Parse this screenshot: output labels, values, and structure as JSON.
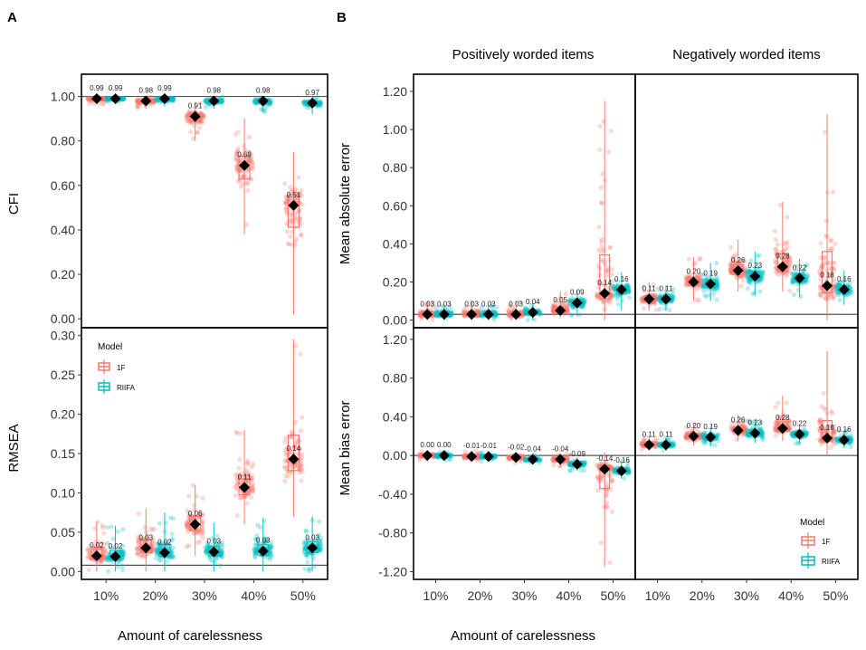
{
  "panel_labels": {
    "a": "A",
    "b": "B"
  },
  "axis_xlabel": "Amount of carelessness",
  "facet_positive": "Positively worded items",
  "facet_negative": "Negatively worded items",
  "legend": {
    "title": "Model",
    "items": [
      {
        "name": "1F",
        "color": "#F8766D"
      },
      {
        "name": "RIIFA",
        "color": "#00BFC4"
      }
    ]
  },
  "chart_data": [
    {
      "id": "A-CFI",
      "type": "scatter",
      "subtype": "jittered boxplot with mean markers",
      "ylabel": "CFI",
      "xlabel": "Amount of carelessness",
      "categories": [
        "10%",
        "20%",
        "30%",
        "40%",
        "50%"
      ],
      "ylim": [
        -0.04,
        1.1
      ],
      "yticks": [
        "0.00",
        "0.20",
        "0.40",
        "0.60",
        "0.80",
        "1.00"
      ],
      "hline": 1.0,
      "series": [
        {
          "name": "1F",
          "means": [
            0.99,
            0.98,
            0.91,
            0.69,
            0.51
          ],
          "labels": [
            "0.99",
            "0.98",
            "0.91",
            "0.69",
            "0.51"
          ],
          "min": [
            0.965,
            0.945,
            0.8,
            0.38,
            0.02
          ],
          "max": [
            1.0,
            1.0,
            0.975,
            0.9,
            0.75
          ]
        },
        {
          "name": "RIIFA",
          "means": [
            0.99,
            0.99,
            0.98,
            0.98,
            0.97
          ],
          "labels": [
            "0.99",
            "0.99",
            "0.98",
            "0.98",
            "0.97"
          ],
          "min": [
            0.975,
            0.955,
            0.945,
            0.93,
            0.92
          ],
          "max": [
            1.0,
            1.0,
            1.0,
            1.0,
            1.0
          ]
        }
      ]
    },
    {
      "id": "A-RMSEA",
      "type": "scatter",
      "subtype": "jittered boxplot with mean markers",
      "ylabel": "RMSEA",
      "xlabel": "Amount of carelessness",
      "categories": [
        "10%",
        "20%",
        "30%",
        "40%",
        "50%"
      ],
      "ylim": [
        -0.01,
        0.31
      ],
      "yticks": [
        "0.00",
        "0.05",
        "0.10",
        "0.15",
        "0.20",
        "0.25",
        "0.30"
      ],
      "hline": 0.008,
      "series": [
        {
          "name": "1F",
          "means": [
            0.02,
            0.03,
            0.06,
            0.107,
            0.143
          ],
          "labels": [
            "0.02",
            "0.03",
            "0.06",
            "0.11",
            "0.14"
          ],
          "min": [
            0.0,
            0.0,
            0.02,
            0.06,
            0.07
          ],
          "max": [
            0.063,
            0.08,
            0.11,
            0.18,
            0.295
          ]
        },
        {
          "name": "RIIFA",
          "means": [
            0.019,
            0.024,
            0.025,
            0.026,
            0.03
          ],
          "labels": [
            "0.02",
            "0.02",
            "0.03",
            "0.03",
            "0.03"
          ],
          "min": [
            0.0,
            0.0,
            0.0,
            0.0,
            0.0
          ],
          "max": [
            0.058,
            0.075,
            0.062,
            0.068,
            0.07
          ]
        }
      ]
    },
    {
      "id": "B-MAE-pos",
      "type": "scatter",
      "subtype": "jittered boxplot with mean markers",
      "ylabel": "Mean absolute error",
      "facet": "Positively worded items",
      "xlabel": "Amount of carelessness",
      "categories": [
        "10%",
        "20%",
        "30%",
        "40%",
        "50%"
      ],
      "ylim": [
        -0.04,
        1.29
      ],
      "yticks": [
        "0.00",
        "0.20",
        "0.40",
        "0.60",
        "0.80",
        "1.00",
        "1.20"
      ],
      "hline": 0.03,
      "series": [
        {
          "name": "1F",
          "means": [
            0.03,
            0.03,
            0.03,
            0.05,
            0.14
          ],
          "labels": [
            "0.03",
            "0.03",
            "0.03",
            "0.05",
            "0.14"
          ],
          "min": [
            0.0,
            0.0,
            0.0,
            0.01,
            0.0
          ],
          "max": [
            0.1,
            0.1,
            0.1,
            0.15,
            1.15
          ]
        },
        {
          "name": "RIIFA",
          "means": [
            0.03,
            0.03,
            0.04,
            0.09,
            0.16
          ],
          "labels": [
            "0.03",
            "0.03",
            "0.04",
            "0.09",
            "0.16"
          ],
          "min": [
            0.0,
            0.0,
            0.0,
            0.02,
            0.05
          ],
          "max": [
            0.08,
            0.08,
            0.09,
            0.16,
            0.25
          ]
        }
      ]
    },
    {
      "id": "B-MAE-neg",
      "type": "scatter",
      "subtype": "jittered boxplot with mean markers",
      "ylabel": "Mean absolute error",
      "facet": "Negatively worded items",
      "xlabel": "Amount of carelessness",
      "categories": [
        "10%",
        "20%",
        "30%",
        "40%",
        "50%"
      ],
      "ylim": [
        -0.04,
        1.29
      ],
      "hline": 0.03,
      "series": [
        {
          "name": "1F",
          "means": [
            0.11,
            0.2,
            0.26,
            0.28,
            0.18
          ],
          "labels": [
            "0.11",
            "0.20",
            "0.26",
            "0.28",
            "0.18"
          ],
          "min": [
            0.05,
            0.1,
            0.15,
            0.15,
            0.0
          ],
          "max": [
            0.2,
            0.33,
            0.42,
            0.62,
            1.08
          ]
        },
        {
          "name": "RIIFA",
          "means": [
            0.11,
            0.19,
            0.23,
            0.22,
            0.16
          ],
          "labels": [
            "0.11",
            "0.19",
            "0.23",
            "0.22",
            "0.16"
          ],
          "min": [
            0.05,
            0.1,
            0.13,
            0.12,
            0.08
          ],
          "max": [
            0.18,
            0.3,
            0.36,
            0.32,
            0.26
          ]
        }
      ]
    },
    {
      "id": "B-MBE-pos",
      "type": "scatter",
      "subtype": "jittered boxplot with mean markers",
      "ylabel": "Mean bias error",
      "facet": "Positively worded items",
      "xlabel": "Amount of carelessness",
      "categories": [
        "10%",
        "20%",
        "30%",
        "40%",
        "50%"
      ],
      "ylim": [
        -1.28,
        1.32
      ],
      "yticks": [
        "-1.20",
        "-0.80",
        "-0.40",
        "0.00",
        "0.40",
        "0.80",
        "1.20"
      ],
      "hline": 0.0,
      "series": [
        {
          "name": "1F",
          "means": [
            0.0,
            -0.01,
            -0.02,
            -0.04,
            -0.14
          ],
          "labels": [
            "0.00",
            "-0.01",
            "-0.02",
            "-0.04",
            "-0.14"
          ],
          "min": [
            -0.05,
            -0.06,
            -0.08,
            -0.12,
            -1.15
          ],
          "max": [
            0.05,
            0.05,
            0.03,
            0.02,
            0.03
          ]
        },
        {
          "name": "RIIFA",
          "means": [
            0.0,
            -0.01,
            -0.04,
            -0.09,
            -0.16
          ],
          "labels": [
            "0.00",
            "-0.01",
            "-0.04",
            "-0.09",
            "-0.16"
          ],
          "min": [
            -0.05,
            -0.06,
            -0.09,
            -0.16,
            -0.24
          ],
          "max": [
            0.04,
            0.04,
            0.02,
            -0.02,
            -0.06
          ]
        }
      ]
    },
    {
      "id": "B-MBE-neg",
      "type": "scatter",
      "subtype": "jittered boxplot with mean markers",
      "ylabel": "Mean bias error",
      "facet": "Negatively worded items",
      "xlabel": "Amount of carelessness",
      "categories": [
        "10%",
        "20%",
        "30%",
        "40%",
        "50%"
      ],
      "ylim": [
        -1.28,
        1.32
      ],
      "hline": 0.0,
      "series": [
        {
          "name": "1F",
          "means": [
            0.11,
            0.2,
            0.26,
            0.28,
            0.18
          ],
          "labels": [
            "0.11",
            "0.20",
            "0.26",
            "0.28",
            "0.18"
          ],
          "min": [
            0.05,
            0.1,
            0.15,
            0.15,
            0.0
          ],
          "max": [
            0.2,
            0.33,
            0.42,
            0.62,
            1.08
          ]
        },
        {
          "name": "RIIFA",
          "means": [
            0.11,
            0.19,
            0.23,
            0.22,
            0.16
          ],
          "labels": [
            "0.11",
            "0.19",
            "0.23",
            "0.22",
            "0.16"
          ],
          "min": [
            0.05,
            0.1,
            0.13,
            0.12,
            0.08
          ],
          "max": [
            0.18,
            0.3,
            0.36,
            0.32,
            0.26
          ]
        }
      ]
    }
  ]
}
